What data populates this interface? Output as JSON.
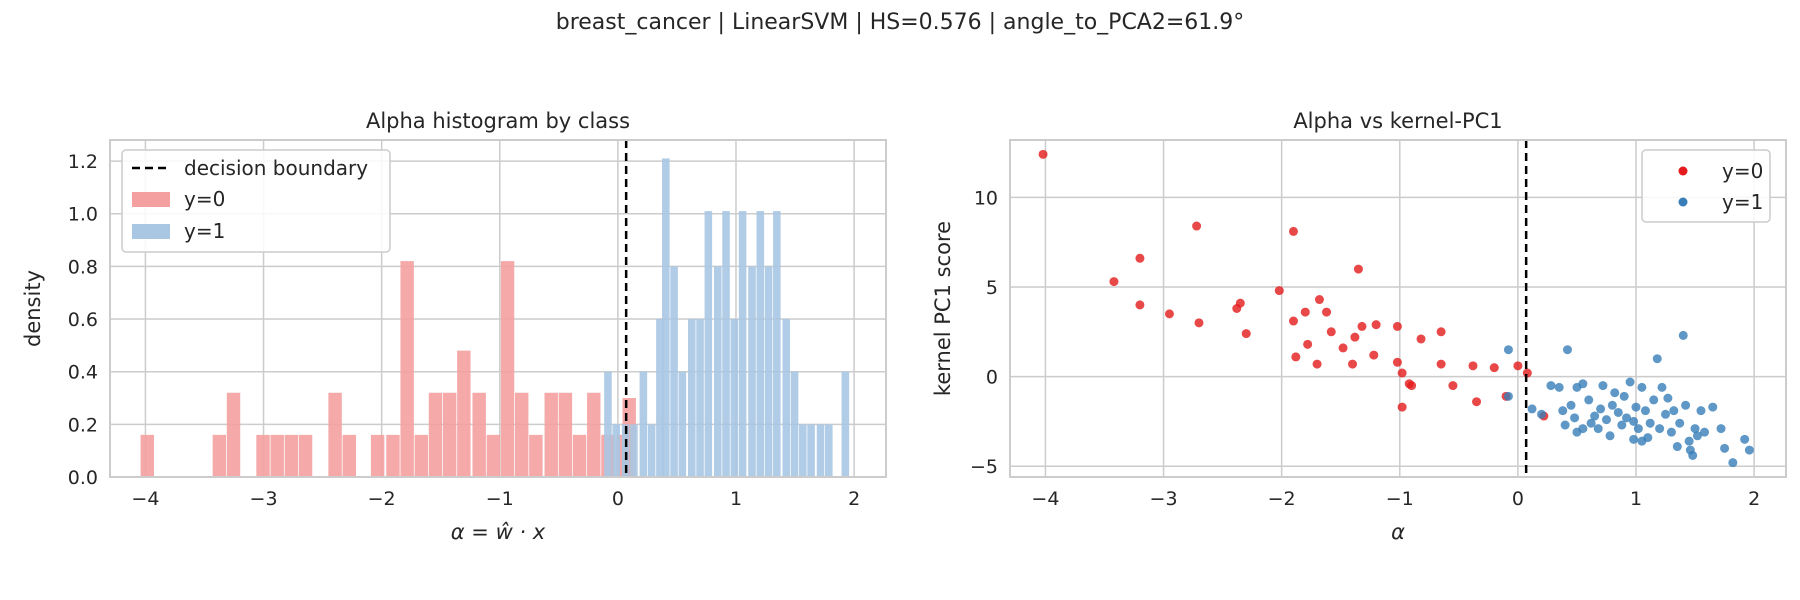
{
  "figure": {
    "suptitle": "breast_cancer | LinearSVM | HS=0.576 | angle_to_PCA2=61.9°"
  },
  "colors": {
    "class0": "#e41a1c",
    "class1": "#377eb8",
    "grid": "#cccccc",
    "spine": "#cccccc",
    "boundary": "#000000"
  },
  "chart_data": [
    {
      "type": "bar",
      "subtype": "histogram",
      "title": "Alpha histogram by class",
      "xlabel": "α = ŵ · x",
      "ylabel": "density",
      "xlim": [
        -4.3,
        2.27
      ],
      "ylim": [
        0,
        1.28
      ],
      "xticks": [
        -4,
        -3,
        -2,
        -1,
        0,
        1,
        2
      ],
      "xtick_labels": [
        "−4",
        "−3",
        "−2",
        "−1",
        "0",
        "1",
        "2"
      ],
      "yticks": [
        0.0,
        0.2,
        0.4,
        0.6,
        0.8,
        1.0,
        1.2
      ],
      "ytick_labels": [
        "0.0",
        "0.2",
        "0.4",
        "0.6",
        "0.8",
        "1.0",
        "1.2"
      ],
      "grid": true,
      "legend_position": "top-left",
      "legend": [
        "decision boundary",
        "y=0",
        "y=1"
      ],
      "decision_boundary_x": 0.07,
      "series": [
        {
          "name": "y=0",
          "color": "#f4a0a0",
          "bin_width": 0.122,
          "bins": [
            [
              -3.98,
              0.16
            ],
            [
              -3.37,
              0.16
            ],
            [
              -3.25,
              0.32
            ],
            [
              -3.0,
              0.16
            ],
            [
              -2.88,
              0.16
            ],
            [
              -2.76,
              0.16
            ],
            [
              -2.64,
              0.16
            ],
            [
              -2.39,
              0.32
            ],
            [
              -2.27,
              0.16
            ],
            [
              -2.03,
              0.16
            ],
            [
              -1.9,
              0.16
            ],
            [
              -1.78,
              0.82
            ],
            [
              -1.66,
              0.16
            ],
            [
              -1.54,
              0.32
            ],
            [
              -1.42,
              0.32
            ],
            [
              -1.3,
              0.48
            ],
            [
              -1.17,
              0.32
            ],
            [
              -1.05,
              0.16
            ],
            [
              -0.93,
              0.82
            ],
            [
              -0.81,
              0.32
            ],
            [
              -0.69,
              0.16
            ],
            [
              -0.56,
              0.32
            ],
            [
              -0.44,
              0.32
            ],
            [
              -0.32,
              0.16
            ],
            [
              -0.2,
              0.32
            ],
            [
              -0.08,
              0.16
            ],
            [
              0.05,
              0.16
            ],
            [
              0.1,
              0.3
            ]
          ]
        },
        {
          "name": "y=1",
          "color": "#a9c6e3",
          "bin_width": 0.0725,
          "bins": [
            [
              -0.08,
              0.4
            ],
            [
              -0.01,
              0.2
            ],
            [
              0.07,
              0.2
            ],
            [
              0.14,
              0.2
            ],
            [
              0.22,
              0.4
            ],
            [
              0.29,
              0.2
            ],
            [
              0.36,
              0.6
            ],
            [
              0.41,
              1.21
            ],
            [
              0.48,
              0.8
            ],
            [
              0.55,
              0.4
            ],
            [
              0.63,
              0.6
            ],
            [
              0.7,
              0.6
            ],
            [
              0.77,
              1.01
            ],
            [
              0.85,
              0.8
            ],
            [
              0.92,
              1.01
            ],
            [
              0.99,
              0.6
            ],
            [
              1.06,
              1.01
            ],
            [
              1.14,
              0.8
            ],
            [
              1.21,
              1.01
            ],
            [
              1.28,
              0.8
            ],
            [
              1.35,
              1.01
            ],
            [
              1.43,
              0.6
            ],
            [
              1.5,
              0.4
            ],
            [
              1.57,
              0.2
            ],
            [
              1.64,
              0.2
            ],
            [
              1.72,
              0.2
            ],
            [
              1.79,
              0.2
            ],
            [
              1.93,
              0.4
            ]
          ]
        }
      ]
    },
    {
      "type": "scatter",
      "title": "Alpha vs kernel-PC1",
      "xlabel": "α",
      "ylabel": "kernel PC1 score",
      "xlim": [
        -4.3,
        2.27
      ],
      "ylim": [
        -5.6,
        13.2
      ],
      "xticks": [
        -4,
        -3,
        -2,
        -1,
        0,
        1,
        2
      ],
      "xtick_labels": [
        "−4",
        "−3",
        "−2",
        "−1",
        "0",
        "1",
        "2"
      ],
      "yticks": [
        -5,
        0,
        5,
        10
      ],
      "ytick_labels": [
        "−5",
        "0",
        "5",
        "10"
      ],
      "grid": true,
      "legend_position": "top-right",
      "legend": [
        "y=0",
        "y=1"
      ],
      "decision_boundary_x": 0.07,
      "series": [
        {
          "name": "y=0",
          "color": "#e41a1c",
          "points": [
            [
              -4.02,
              12.4
            ],
            [
              -3.42,
              5.3
            ],
            [
              -3.2,
              6.6
            ],
            [
              -3.2,
              4.0
            ],
            [
              -2.95,
              3.5
            ],
            [
              -2.72,
              8.4
            ],
            [
              -2.7,
              3.0
            ],
            [
              -2.35,
              4.1
            ],
            [
              -2.38,
              3.8
            ],
            [
              -2.3,
              2.4
            ],
            [
              -1.9,
              8.1
            ],
            [
              -2.02,
              4.8
            ],
            [
              -1.9,
              3.1
            ],
            [
              -1.8,
              3.6
            ],
            [
              -1.78,
              1.8
            ],
            [
              -1.88,
              1.1
            ],
            [
              -1.7,
              0.7
            ],
            [
              -1.68,
              4.3
            ],
            [
              -1.62,
              3.6
            ],
            [
              -1.58,
              2.5
            ],
            [
              -1.48,
              1.6
            ],
            [
              -1.4,
              0.7
            ],
            [
              -1.38,
              2.2
            ],
            [
              -1.32,
              2.8
            ],
            [
              -1.35,
              6.0
            ],
            [
              -1.22,
              1.2
            ],
            [
              -1.2,
              2.9
            ],
            [
              -1.02,
              2.8
            ],
            [
              -1.02,
              0.8
            ],
            [
              -0.98,
              0.2
            ],
            [
              -0.98,
              -1.7
            ],
            [
              -0.92,
              -0.4
            ],
            [
              -0.9,
              -0.5
            ],
            [
              -0.82,
              2.1
            ],
            [
              -0.65,
              2.5
            ],
            [
              -0.65,
              0.7
            ],
            [
              -0.55,
              -0.5
            ],
            [
              -0.38,
              0.6
            ],
            [
              -0.35,
              -1.4
            ],
            [
              -0.2,
              0.5
            ],
            [
              -0.1,
              -1.1
            ],
            [
              0.0,
              0.6
            ],
            [
              0.08,
              0.2
            ],
            [
              0.22,
              -2.2
            ]
          ]
        },
        {
          "name": "y=1",
          "color": "#377eb8",
          "points": [
            [
              -0.08,
              1.5
            ],
            [
              -0.08,
              -1.1
            ],
            [
              0.12,
              -1.8
            ],
            [
              0.2,
              -2.1
            ],
            [
              0.28,
              -0.5
            ],
            [
              0.35,
              -0.6
            ],
            [
              0.38,
              -1.9
            ],
            [
              0.4,
              -2.7
            ],
            [
              0.42,
              1.5
            ],
            [
              0.45,
              -1.6
            ],
            [
              0.48,
              -2.3
            ],
            [
              0.5,
              -0.6
            ],
            [
              0.5,
              -3.1
            ],
            [
              0.55,
              -0.4
            ],
            [
              0.55,
              -2.9
            ],
            [
              0.6,
              -1.3
            ],
            [
              0.62,
              -2.6
            ],
            [
              0.65,
              -2.2
            ],
            [
              0.68,
              -2.9
            ],
            [
              0.7,
              -1.8
            ],
            [
              0.72,
              -0.5
            ],
            [
              0.75,
              -2.4
            ],
            [
              0.78,
              -3.3
            ],
            [
              0.8,
              -1.6
            ],
            [
              0.82,
              -0.9
            ],
            [
              0.85,
              -2.0
            ],
            [
              0.88,
              -2.7
            ],
            [
              0.9,
              -1.1
            ],
            [
              0.92,
              -2.3
            ],
            [
              0.95,
              -0.3
            ],
            [
              0.98,
              -2.5
            ],
            [
              1.0,
              -1.7
            ],
            [
              1.02,
              -2.9
            ],
            [
              1.05,
              -0.6
            ],
            [
              1.08,
              -1.9
            ],
            [
              1.1,
              -3.4
            ],
            [
              1.12,
              -2.6
            ],
            [
              1.15,
              -1.3
            ],
            [
              1.18,
              1.0
            ],
            [
              1.2,
              -2.9
            ],
            [
              1.22,
              -0.6
            ],
            [
              1.25,
              -2.1
            ],
            [
              1.27,
              -1.2
            ],
            [
              1.3,
              -3.1
            ],
            [
              1.32,
              -1.9
            ],
            [
              1.35,
              -3.9
            ],
            [
              1.37,
              -2.6
            ],
            [
              1.4,
              2.3
            ],
            [
              1.42,
              -1.6
            ],
            [
              1.45,
              -3.6
            ],
            [
              1.48,
              -4.4
            ],
            [
              1.5,
              -2.9
            ],
            [
              1.52,
              -3.3
            ],
            [
              1.55,
              -1.9
            ],
            [
              1.58,
              -3.1
            ],
            [
              1.65,
              -1.7
            ],
            [
              1.72,
              -2.9
            ],
            [
              1.75,
              -4.0
            ],
            [
              1.82,
              -4.8
            ],
            [
              1.92,
              -3.5
            ],
            [
              1.96,
              -4.1
            ],
            [
              0.98,
              -3.5
            ],
            [
              1.05,
              -3.6
            ],
            [
              1.46,
              -4.1
            ]
          ]
        }
      ]
    }
  ]
}
